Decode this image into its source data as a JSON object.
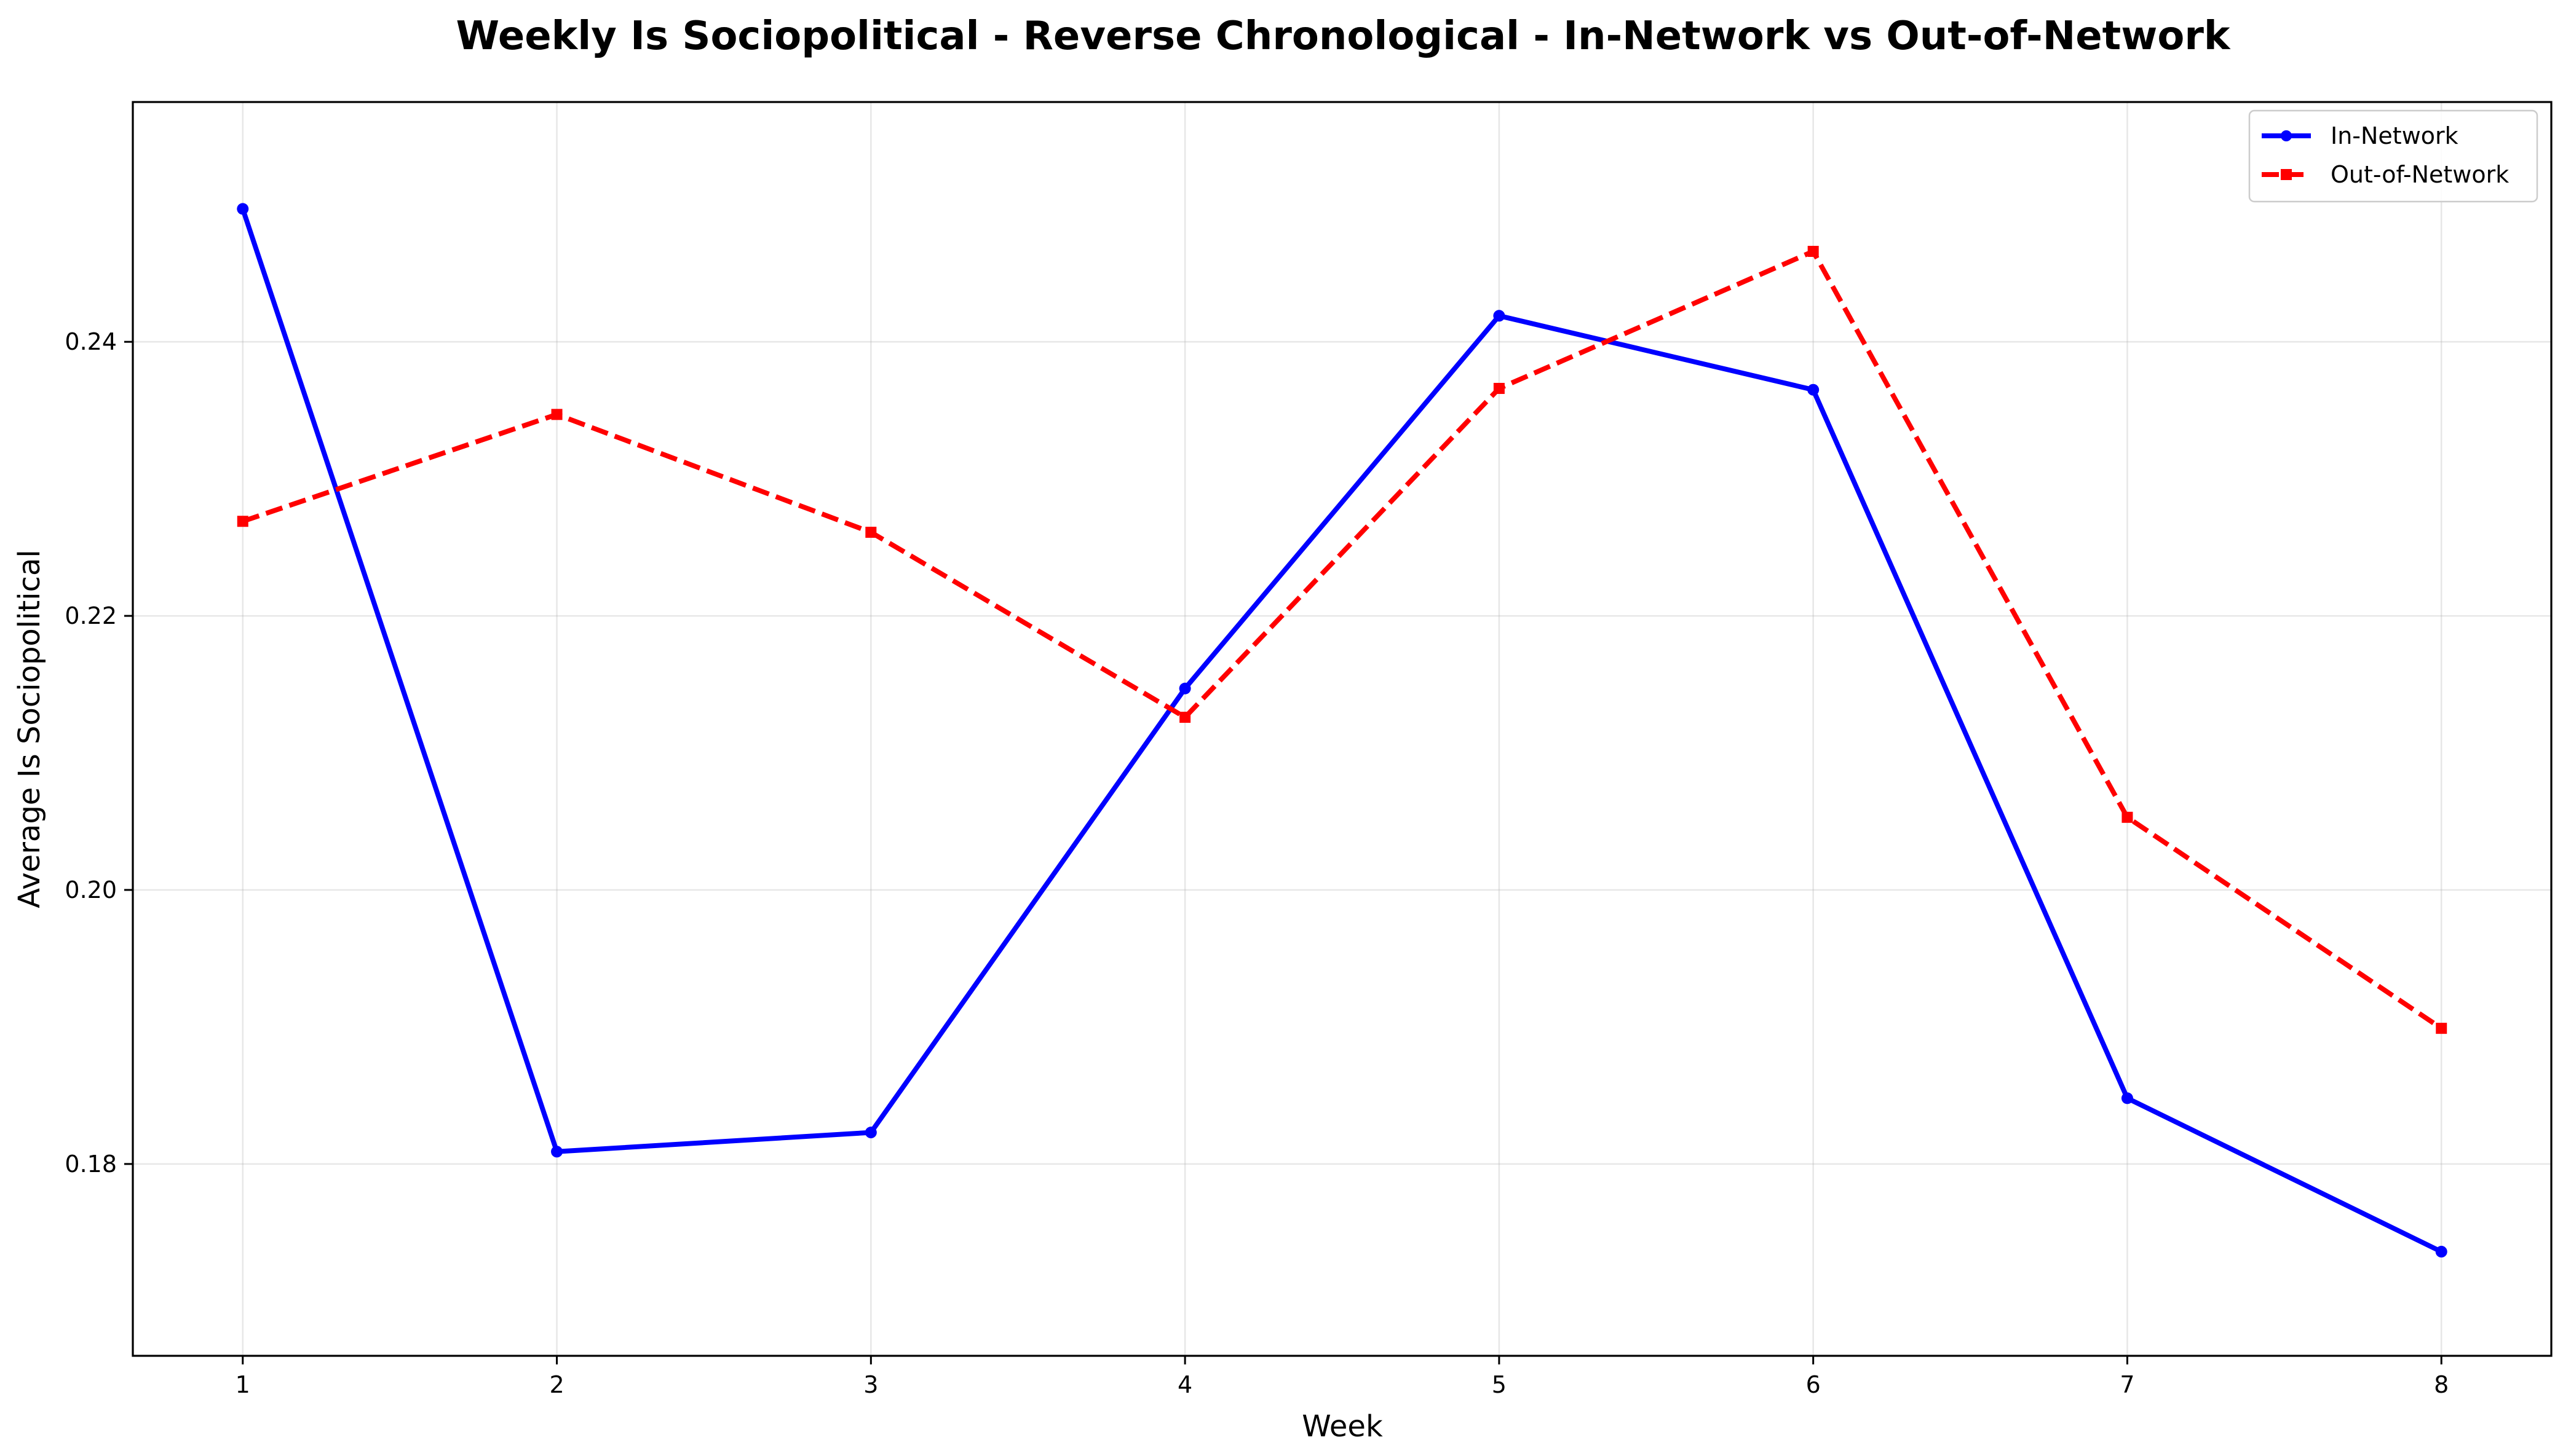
{
  "chart_data": {
    "type": "line",
    "title": "Weekly Is Sociopolitical - Reverse Chronological - In-Network vs Out-of-Network",
    "xlabel": "Week",
    "ylabel": "Average Is Sociopolitical",
    "x": [
      1,
      2,
      3,
      4,
      5,
      6,
      7,
      8
    ],
    "x_tick_labels": [
      "1",
      "2",
      "3",
      "4",
      "5",
      "6",
      "7",
      "8"
    ],
    "xlim": [
      0.65,
      8.35
    ],
    "ylim": [
      0.166,
      0.2575
    ],
    "y_ticks": [
      0.18,
      0.2,
      0.22,
      0.24
    ],
    "y_tick_labels": [
      "0.18",
      "0.20",
      "0.22",
      "0.24"
    ],
    "grid": true,
    "legend_position": "top-right",
    "series": [
      {
        "name": "In-Network",
        "color": "#0000ff",
        "line_style": "solid",
        "marker": "circle",
        "values": [
          0.2497,
          0.1809,
          0.1823,
          0.2147,
          0.2419,
          0.2365,
          0.1848,
          0.1736
        ]
      },
      {
        "name": "Out-of-Network",
        "color": "#ff0000",
        "line_style": "dashed",
        "marker": "square",
        "values": [
          0.2269,
          0.2347,
          0.2261,
          0.2126,
          0.2366,
          0.2466,
          0.2053,
          0.1899
        ]
      }
    ]
  }
}
